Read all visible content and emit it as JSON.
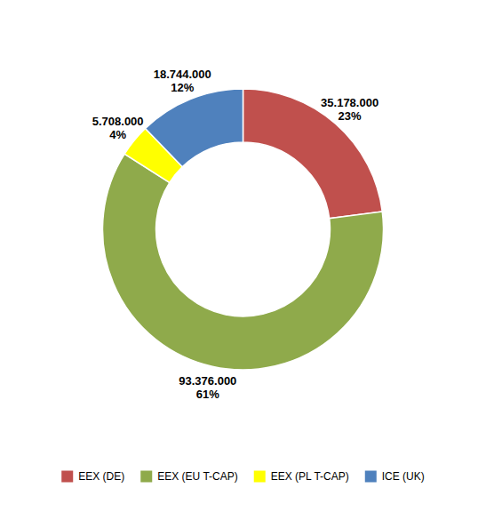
{
  "chart_data": {
    "type": "donut",
    "categories": [
      "EEX (DE)",
      "EEX (EU T-CAP)",
      "EEX (PL T-CAP)",
      "ICE (UK)"
    ],
    "values": [
      35178000,
      93376000,
      5708000,
      18744000
    ],
    "value_labels": [
      "35.178.000",
      "93.376.000",
      "5.708.000",
      "18.744.000"
    ],
    "percentages": [
      23,
      61,
      4,
      12
    ],
    "percentage_labels": [
      "23%",
      "61%",
      "4%",
      "12%"
    ],
    "colors": [
      "#c0504d",
      "#8faa4b",
      "#ffff00",
      "#4f81bd"
    ],
    "data_labels": true,
    "legend": "bottom"
  }
}
